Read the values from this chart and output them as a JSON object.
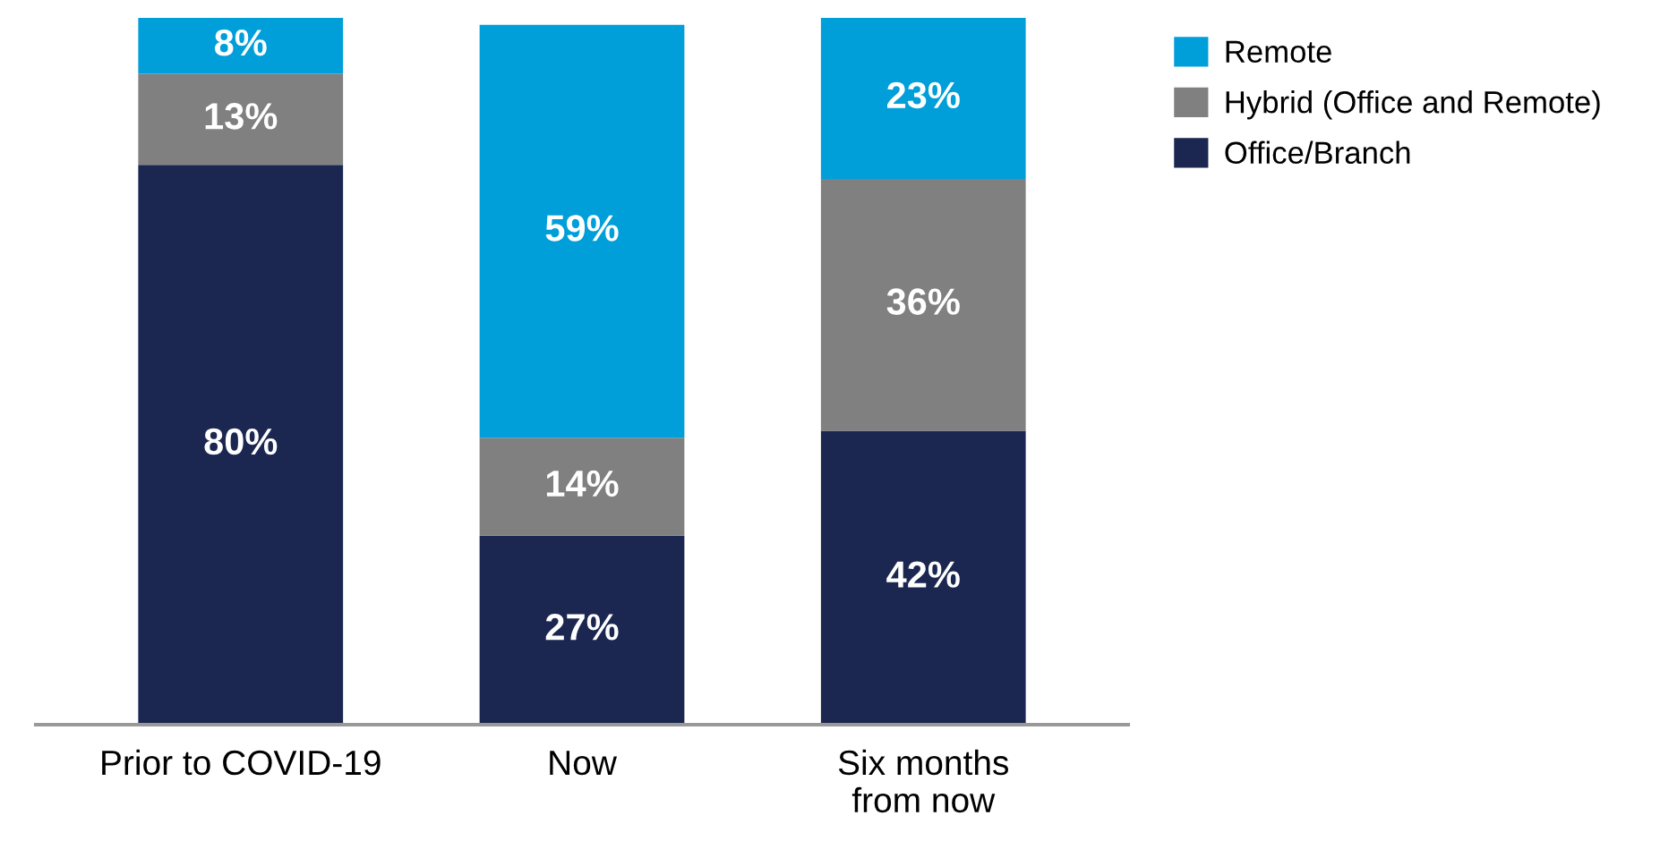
{
  "chart_data": {
    "type": "bar",
    "stacked": true,
    "categories": [
      "Prior to COVID-19",
      "Now",
      "Six months\nfrom now"
    ],
    "series": [
      {
        "name": "Office/Branch",
        "color": "#1b2750",
        "values": [
          80,
          27,
          42
        ],
        "value_labels": [
          "80%",
          "27%",
          "42%"
        ]
      },
      {
        "name": "Hybrid (Office and Remote)",
        "color": "#808080",
        "values": [
          13,
          14,
          36
        ],
        "value_labels": [
          "13%",
          "14%",
          "36%"
        ]
      },
      {
        "name": "Remote",
        "color": "#009fda",
        "values": [
          8,
          59,
          23
        ],
        "value_labels": [
          "8%",
          "59%",
          "23%"
        ]
      }
    ],
    "legend": "top right",
    "tick_labels": "x",
    "grid": false
  }
}
